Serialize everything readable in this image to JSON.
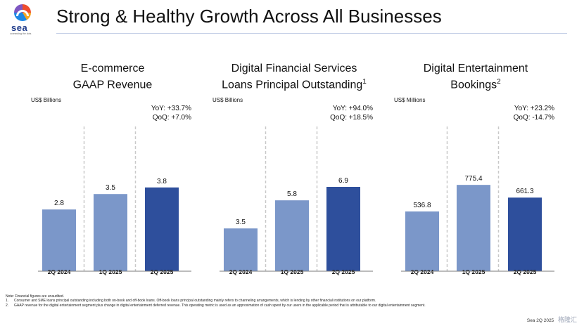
{
  "header": {
    "title": "Strong & Healthy Growth Across All Businesses",
    "logo_text": "sea",
    "logo_tagline": "connecting the dots"
  },
  "colors": {
    "bar_light": "#7b97c9",
    "bar_dark": "#2e4f9c",
    "divider": "#c9c9c9",
    "axis": "#7a7a7a"
  },
  "panels": [
    {
      "title_line1": "E-commerce",
      "title_line2": "GAAP Revenue",
      "title_sup": "",
      "unit": "US$ Billions",
      "yoy": "YoY: +33.7%",
      "qoq": "QoQ: +7.0%"
    },
    {
      "title_line1": "Digital Financial Services",
      "title_line2": "Loans Principal Outstanding",
      "title_sup": "1",
      "unit": "US$ Billions",
      "yoy": "YoY: +94.0%",
      "qoq": "QoQ: +18.5%"
    },
    {
      "title_line1": "Digital Entertainment",
      "title_line2": "Bookings",
      "title_sup": "2",
      "unit": "US$ Millions",
      "yoy": "YoY: +23.2%",
      "qoq": "QoQ: -14.7%"
    }
  ],
  "chart_data": [
    {
      "type": "bar",
      "title": "E-commerce GAAP Revenue",
      "ylabel": "US$ Billions",
      "categories": [
        "2Q 2024",
        "1Q 2025",
        "2Q 2025"
      ],
      "values": [
        2.8,
        3.5,
        3.8
      ],
      "labels": [
        "2.8",
        "3.5",
        "3.8"
      ],
      "ylim": [
        0,
        5.1
      ]
    },
    {
      "type": "bar",
      "title": "Digital Financial Services Loans Principal Outstanding",
      "ylabel": "US$ Billions",
      "categories": [
        "2Q 2024",
        "1Q 2025",
        "2Q 2025"
      ],
      "values": [
        3.5,
        5.8,
        6.9
      ],
      "labels": [
        "3.5",
        "5.8",
        "6.9"
      ],
      "ylim": [
        0,
        9.2
      ]
    },
    {
      "type": "bar",
      "title": "Digital Entertainment Bookings",
      "ylabel": "US$ Millions",
      "categories": [
        "2Q 2024",
        "1Q 2025",
        "2Q 2025"
      ],
      "values": [
        536.8,
        775.4,
        661.3
      ],
      "labels": [
        "536.8",
        "775.4",
        "661.3"
      ],
      "ylim": [
        0,
        1010
      ]
    }
  ],
  "footnotes": {
    "note": "Note: Financial figures are unaudited.",
    "items": [
      {
        "num": "1.",
        "text": "Consumer and SME loans principal outstanding including both on-book and off-book loans. Off-book loans principal outstanding mainly refers to channeling arrangements, which is lending by other financial institutions on our platform."
      },
      {
        "num": "2.",
        "text": "GAAP revenue for the digital entertainment segment plus change in digital entertainment deferred revenue. This operating metric is used as an approximation of cash spent by our users in the applicable period that is attributable to our digital entertainment segment."
      }
    ]
  },
  "footer": {
    "text": "Sea 2Q 2025",
    "watermark": "格隆汇"
  }
}
